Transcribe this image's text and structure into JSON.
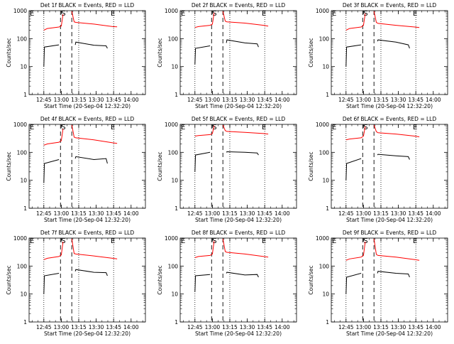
{
  "figure": {
    "xlabel": "Start Time (20-Sep-04 12:32:20)",
    "ylabel": "Counts/sec",
    "x_tick_labels": [
      "12:45",
      "13:00",
      "13:15",
      "13:30",
      "13:45",
      "14:00"
    ],
    "y_tick_labels": [
      "1",
      "10",
      "100",
      "1000"
    ],
    "markers": {
      "start": "E",
      "middle": "S",
      "end": "E"
    },
    "colors": {
      "events": "#000000",
      "lld": "#ff0000"
    }
  },
  "chart_data": [
    {
      "type": "line",
      "title": "Det 1f BLACK = Events, RED = LLD",
      "x_unit": "minutes after 12:32:20",
      "yscale": "log",
      "ylim": [
        1,
        1000
      ],
      "xlim": [
        0,
        100
      ],
      "series": [
        {
          "name": "Events",
          "color": "#000000",
          "segments": [
            {
              "x": [
                12.7,
                13.2,
                25.7
              ],
              "y": [
                10,
                50,
                60
              ]
            },
            {
              "x": [
                39.7,
                40.2,
                55.7,
                66.2,
                67.3
              ],
              "y": [
                60,
                75,
                58,
                55,
                45
              ]
            }
          ]
        },
        {
          "name": "LLD",
          "color": "#ff0000",
          "segments": [
            {
              "x": [
                12.7,
                15.7,
                25.7,
                27.7,
                29.2
              ],
              "y": [
                200,
                230,
                260,
                280,
                750
              ]
            },
            {
              "x": [
                36.7,
                38.7,
                40.2,
                55.7,
                71.7,
                75.7
              ],
              "y": [
                950,
                400,
                380,
                330,
                270,
                265
              ]
            }
          ]
        }
      ]
    },
    {
      "type": "line",
      "title": "Det 2f BLACK = Events, RED = LLD",
      "x_unit": "minutes after 12:32:20",
      "yscale": "log",
      "ylim": [
        1,
        1000
      ],
      "xlim": [
        0,
        100
      ],
      "series": [
        {
          "name": "Events",
          "color": "#000000",
          "segments": [
            {
              "x": [
                12.7,
                13.2,
                25.7
              ],
              "y": [
                12,
                45,
                55
              ]
            },
            {
              "x": [
                39.7,
                40.2,
                55.7,
                66.2,
                67.3
              ],
              "y": [
                70,
                90,
                70,
                65,
                50
              ]
            }
          ]
        },
        {
          "name": "LLD",
          "color": "#ff0000",
          "segments": [
            {
              "x": [
                12.7,
                15.7,
                25.7,
                27.7,
                29.2
              ],
              "y": [
                250,
                270,
                300,
                330,
                850
              ]
            },
            {
              "x": [
                36.7,
                38.7,
                40.2,
                55.7,
                71.7,
                75.7
              ],
              "y": [
                950,
                420,
                400,
                360,
                300,
                280
              ]
            }
          ]
        }
      ]
    },
    {
      "type": "line",
      "title": "Det 3f BLACK = Events, RED = LLD",
      "x_unit": "minutes after 12:32:20",
      "yscale": "log",
      "ylim": [
        1,
        1000
      ],
      "xlim": [
        0,
        100
      ],
      "series": [
        {
          "name": "Events",
          "color": "#000000",
          "segments": [
            {
              "x": [
                12.7,
                13.2,
                25.7
              ],
              "y": [
                10,
                50,
                60
              ]
            },
            {
              "x": [
                39.7,
                40.2,
                55.7,
                66.2,
                67.3
              ],
              "y": [
                80,
                90,
                75,
                60,
                45
              ]
            }
          ]
        },
        {
          "name": "LLD",
          "color": "#ff0000",
          "segments": [
            {
              "x": [
                12.7,
                15.7,
                25.7,
                27.7,
                29.2
              ],
              "y": [
                200,
                230,
                260,
                300,
                800
              ]
            },
            {
              "x": [
                36.7,
                38.7,
                40.2,
                55.7,
                71.7,
                75.7
              ],
              "y": [
                950,
                380,
                350,
                300,
                260,
                250
              ]
            }
          ]
        }
      ]
    },
    {
      "type": "line",
      "title": "Det 4f BLACK = Events, RED = LLD",
      "x_unit": "minutes after 12:32:20",
      "yscale": "log",
      "ylim": [
        1,
        1000
      ],
      "xlim": [
        0,
        100
      ],
      "series": [
        {
          "name": "Events",
          "color": "#000000",
          "segments": [
            {
              "x": [
                12.7,
                13.2,
                25.7
              ],
              "y": [
                8,
                40,
                55
              ]
            },
            {
              "x": [
                39.7,
                40.2,
                55.7,
                66.2,
                67.3
              ],
              "y": [
                60,
                70,
                55,
                60,
                40
              ]
            }
          ]
        },
        {
          "name": "LLD",
          "color": "#ff0000",
          "segments": [
            {
              "x": [
                12.7,
                15.7,
                25.7,
                27.7,
                29.2
              ],
              "y": [
                180,
                200,
                230,
                260,
                700
              ]
            },
            {
              "x": [
                36.7,
                38.7,
                40.2,
                55.7,
                71.7,
                75.7
              ],
              "y": [
                950,
                350,
                330,
                280,
                220,
                210
              ]
            }
          ]
        }
      ]
    },
    {
      "type": "line",
      "title": "Det 5f BLACK = Events, RED = LLD",
      "x_unit": "minutes after 12:32:20",
      "yscale": "log",
      "ylim": [
        1,
        1000
      ],
      "xlim": [
        0,
        100
      ],
      "series": [
        {
          "name": "Events",
          "color": "#000000",
          "segments": [
            {
              "x": [
                12.7,
                13.2,
                25.7
              ],
              "y": [
                20,
                80,
                100
              ]
            },
            {
              "x": [
                39.7,
                40.2,
                55.7,
                66.2,
                67.3
              ],
              "y": [
                100,
                105,
                100,
                95,
                80
              ]
            }
          ]
        },
        {
          "name": "LLD",
          "color": "#ff0000",
          "segments": [
            {
              "x": [
                12.7,
                15.7,
                25.7,
                27.7,
                29.2
              ],
              "y": [
                380,
                400,
                430,
                470,
                900
              ]
            },
            {
              "x": [
                36.7,
                38.7,
                40.2,
                55.7,
                71.7,
                75.7
              ],
              "y": [
                950,
                600,
                560,
                520,
                470,
                450
              ]
            }
          ]
        }
      ]
    },
    {
      "type": "line",
      "title": "Det 6f BLACK = Events, RED = LLD",
      "x_unit": "minutes after 12:32:20",
      "yscale": "log",
      "ylim": [
        1,
        1000
      ],
      "xlim": [
        0,
        100
      ],
      "series": [
        {
          "name": "Events",
          "color": "#000000",
          "segments": [
            {
              "x": [
                12.7,
                13.2,
                25.7
              ],
              "y": [
                10,
                40,
                60
              ]
            },
            {
              "x": [
                39.7,
                40.2,
                55.7,
                66.2,
                67.3
              ],
              "y": [
                80,
                85,
                75,
                70,
                55
              ]
            }
          ]
        },
        {
          "name": "LLD",
          "color": "#ff0000",
          "segments": [
            {
              "x": [
                12.7,
                15.7,
                25.7,
                27.7,
                29.2
              ],
              "y": [
                280,
                300,
                330,
                380,
                850
              ]
            },
            {
              "x": [
                36.7,
                38.7,
                40.2,
                55.7,
                71.7,
                75.7
              ],
              "y": [
                950,
                550,
                500,
                450,
                380,
                360
              ]
            }
          ]
        }
      ]
    },
    {
      "type": "line",
      "title": "Det 7f BLACK = Events, RED = LLD",
      "x_unit": "minutes after 12:32:20",
      "yscale": "log",
      "ylim": [
        1,
        1000
      ],
      "xlim": [
        0,
        100
      ],
      "series": [
        {
          "name": "Events",
          "color": "#000000",
          "segments": [
            {
              "x": [
                12.7,
                13.2,
                25.7
              ],
              "y": [
                10,
                45,
                55
              ]
            },
            {
              "x": [
                39.7,
                40.2,
                55.7,
                66.2,
                67.3
              ],
              "y": [
                65,
                75,
                60,
                58,
                45
              ]
            }
          ]
        },
        {
          "name": "LLD",
          "color": "#ff0000",
          "segments": [
            {
              "x": [
                12.7,
                15.7,
                25.7,
                27.7,
                29.2
              ],
              "y": [
                170,
                190,
                220,
                250,
                750
              ]
            },
            {
              "x": [
                36.7,
                38.7,
                40.2,
                55.7,
                71.7,
                75.7
              ],
              "y": [
                950,
                280,
                270,
                230,
                190,
                180
              ]
            }
          ]
        }
      ]
    },
    {
      "type": "line",
      "title": "Det 8f BLACK = Events, RED = LLD",
      "x_unit": "minutes after 12:32:20",
      "yscale": "log",
      "ylim": [
        1,
        1000
      ],
      "xlim": [
        0,
        100
      ],
      "series": [
        {
          "name": "Events",
          "color": "#000000",
          "segments": [
            {
              "x": [
                12.7,
                13.2,
                25.7
              ],
              "y": [
                12,
                45,
                50
              ]
            },
            {
              "x": [
                39.7,
                40.2,
                55.7,
                66.2,
                67.3
              ],
              "y": [
                55,
                60,
                48,
                50,
                40
              ]
            }
          ]
        },
        {
          "name": "LLD",
          "color": "#ff0000",
          "segments": [
            {
              "x": [
                12.7,
                15.7,
                25.7,
                27.7,
                29.2
              ],
              "y": [
                200,
                220,
                240,
                270,
                800
              ]
            },
            {
              "x": [
                36.7,
                38.7,
                40.2,
                55.7,
                71.7,
                75.7
              ],
              "y": [
                950,
                330,
                310,
                270,
                220,
                210
              ]
            }
          ]
        }
      ]
    },
    {
      "type": "line",
      "title": "Det 9f BLACK = Events, RED = LLD",
      "x_unit": "minutes after 12:32:20",
      "yscale": "log",
      "ylim": [
        1,
        1000
      ],
      "xlim": [
        0,
        100
      ],
      "series": [
        {
          "name": "Events",
          "color": "#000000",
          "segments": [
            {
              "x": [
                12.7,
                13.2,
                25.7
              ],
              "y": [
                10,
                40,
                55
              ]
            },
            {
              "x": [
                39.7,
                40.2,
                55.7,
                66.2,
                67.3
              ],
              "y": [
                55,
                65,
                55,
                52,
                40
              ]
            }
          ]
        },
        {
          "name": "LLD",
          "color": "#ff0000",
          "segments": [
            {
              "x": [
                12.7,
                15.7,
                25.7,
                27.7,
                29.2
              ],
              "y": [
                160,
                180,
                210,
                240,
                750
              ]
            },
            {
              "x": [
                36.7,
                38.7,
                40.2,
                55.7,
                71.7,
                75.7
              ],
              "y": [
                950,
                260,
                240,
                210,
                170,
                160
              ]
            }
          ]
        }
      ]
    }
  ]
}
